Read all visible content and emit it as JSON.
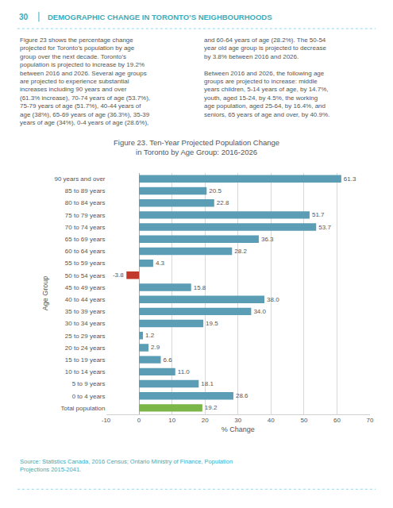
{
  "chart_data": {
    "type": "bar",
    "orientation": "horizontal",
    "title": "Figure 23. Ten-Year Projected Population Change",
    "subtitle": "in Toronto by Age Group: 2016-2026",
    "categories": [
      "90 years and over",
      "85 to 89 years",
      "80 to 84 years",
      "75 to 79 years",
      "70 to 74 years",
      "65 to 69 years",
      "60 to 64 years",
      "55 to 59 years",
      "50 to 54 years",
      "45 to 49 years",
      "40 to 44 years",
      "35 to 39 years",
      "30 to 34 years",
      "25 to 29 years",
      "20 to 24 years",
      "15 to 19 years",
      "10 to 14 years",
      "5 to 9 years",
      "0 to 4 years",
      "Total population"
    ],
    "values": [
      61.3,
      20.5,
      22.8,
      51.7,
      53.7,
      36.3,
      28.2,
      4.3,
      -3.8,
      15.8,
      38.0,
      34.0,
      19.5,
      1.2,
      2.9,
      6.6,
      11.0,
      18.1,
      28.6,
      19.2
    ],
    "value_labels": [
      "61.3",
      "20.5",
      "22.8",
      "51.7",
      "53.7",
      "36.3",
      "28.2",
      "4.3",
      "-3.8",
      "15.8",
      "38.0",
      "34.0",
      "19.5",
      "1.2",
      "2.9",
      "6.6",
      "11.0",
      "18.1",
      "28.6",
      "19.2"
    ],
    "data_labels": true,
    "colors": [
      "#5b9db5",
      "#5b9db5",
      "#5b9db5",
      "#5b9db5",
      "#5b9db5",
      "#5b9db5",
      "#5b9db5",
      "#5b9db5",
      "#c0392b",
      "#5b9db5",
      "#5b9db5",
      "#5b9db5",
      "#5b9db5",
      "#5b9db5",
      "#5b9db5",
      "#5b9db5",
      "#5b9db5",
      "#5b9db5",
      "#5b9db5",
      "#7ab648"
    ],
    "xlabel": "% Change",
    "ylabel": "Age Group",
    "xlim": [
      -10,
      70
    ],
    "xticks": [
      -10,
      0,
      10,
      20,
      30,
      40,
      50,
      60,
      70
    ],
    "grid": true,
    "annotations": [
      "30",
      "DEMOGRAPHIC CHANGE IN TORONTO’S NEIGHBOURHOODS",
      "Figure 23 shows the percentage change\nprojected for Toronto’s population by age\ngroup over the next decade. Toronto’s\npopulation is projected to increase by 19.2%\nbetween 2016 and 2026. Several age groups\nare projected to experience substantial\nincreases including 90 years and over\n(61.3% increase), 70-74 years of age (53.7%),\n75-79 years of age (51.7%), 40-44 years of\nage (38%), 65-69 years of age (36.3%), 35-39\nyears of age (34%), 0-4 years of age (28.6%),",
      "and 60-64 years of age (28.2%). The 50-54\nyear old age group is projected to decrease\nby 3.8% between 2016 and 2026.\n\nBetween 2016 and 2026, the following age\ngroups are projected to increase: middle\nyears children, 5-14 years of age, by 14.7%,\nyouth, aged 15-24, by 4.5%, the working\nage population, aged 25-64, by 16.4%, and\nseniors, 65 years of age and over, by 40.9%.",
      "Source: Statistics Canada, 2016 Census; Ontario Ministry of Finance, Population\nProjections 2015-2041."
    ]
  }
}
